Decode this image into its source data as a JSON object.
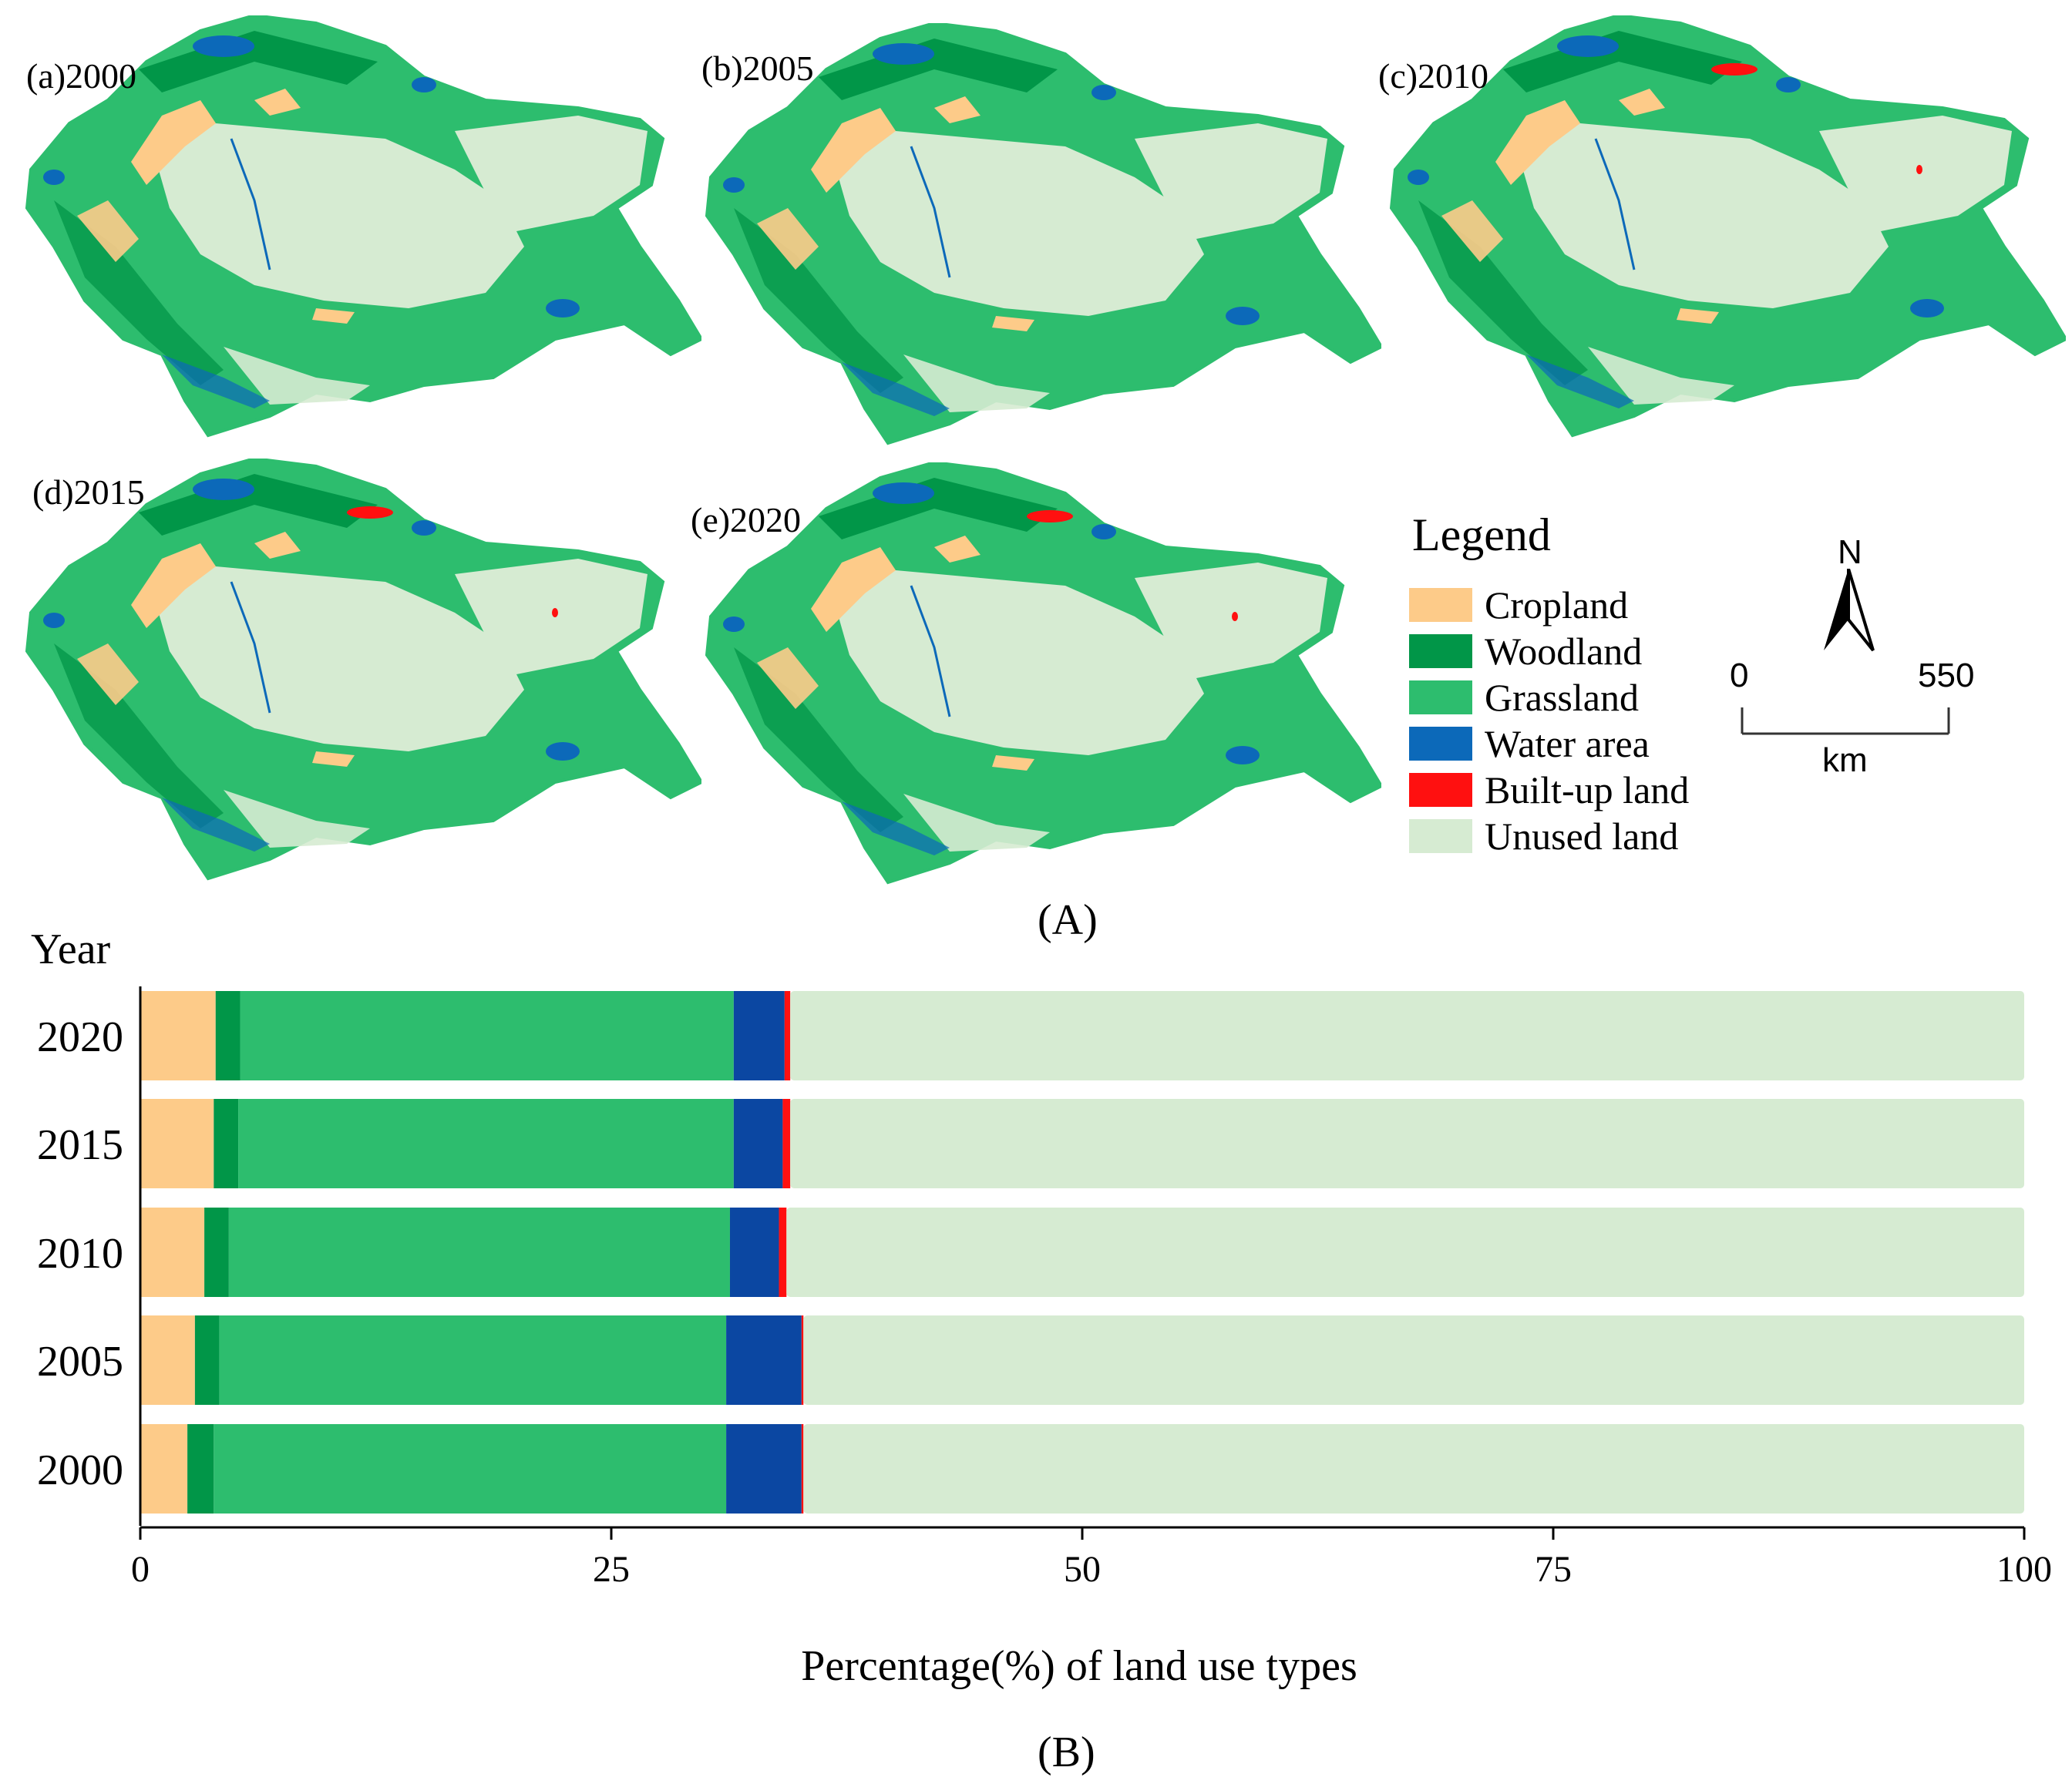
{
  "colors": {
    "cropland": "#fdcb89",
    "woodland": "#019648",
    "grassland": "#2dbd6e",
    "water": "#0c69b9",
    "water_bar": "#0b47a2",
    "builtup": "#ff1010",
    "unused": "#d6ebd2"
  },
  "maps": [
    {
      "label": "(a)2000"
    },
    {
      "label": "(b)2005"
    },
    {
      "label": "(c)2010"
    },
    {
      "label": "(d)2015"
    },
    {
      "label": "(e)2020"
    }
  ],
  "legend": {
    "title": "Legend",
    "items": [
      {
        "label": "Cropland",
        "color": "#fdcb89"
      },
      {
        "label": "Woodland",
        "color": "#019648"
      },
      {
        "label": "Grassland",
        "color": "#2dbd6e"
      },
      {
        "label": "Water area",
        "color": "#0c69b9"
      },
      {
        "label": "Built-up land",
        "color": "#ff1010"
      },
      {
        "label": "Unused land",
        "color": "#d6ebd2"
      }
    ]
  },
  "north_arrow": {
    "label": "N"
  },
  "scale_bar": {
    "start": "0",
    "end": "550",
    "unit": "km"
  },
  "panel_labels": {
    "top": "(A)",
    "bottom": "(B)"
  },
  "chart_data": {
    "type": "bar",
    "orientation": "horizontal",
    "stacked": true,
    "categories": [
      "2020",
      "2015",
      "2010",
      "2005",
      "2000"
    ],
    "series": [
      {
        "name": "Cropland",
        "values": [
          4.0,
          3.9,
          3.4,
          2.9,
          2.5
        ]
      },
      {
        "name": "Woodland",
        "values": [
          1.3,
          1.3,
          1.3,
          1.3,
          1.4
        ]
      },
      {
        "name": "Grassland",
        "values": [
          26.2,
          26.3,
          26.6,
          26.9,
          27.2
        ]
      },
      {
        "name": "Water area",
        "values": [
          2.7,
          2.6,
          2.6,
          4.0,
          4.0
        ]
      },
      {
        "name": "Built-up land",
        "values": [
          0.3,
          0.4,
          0.4,
          0.1,
          0.1
        ]
      },
      {
        "name": "Unused land",
        "values": [
          65.5,
          65.5,
          65.7,
          64.8,
          64.8
        ]
      }
    ],
    "xlabel": "Percentage(%) of land use types",
    "ylabel": "Year",
    "xlim": [
      0,
      100
    ],
    "xticks": [
      "0",
      "25",
      "50",
      "75",
      "100"
    ]
  }
}
